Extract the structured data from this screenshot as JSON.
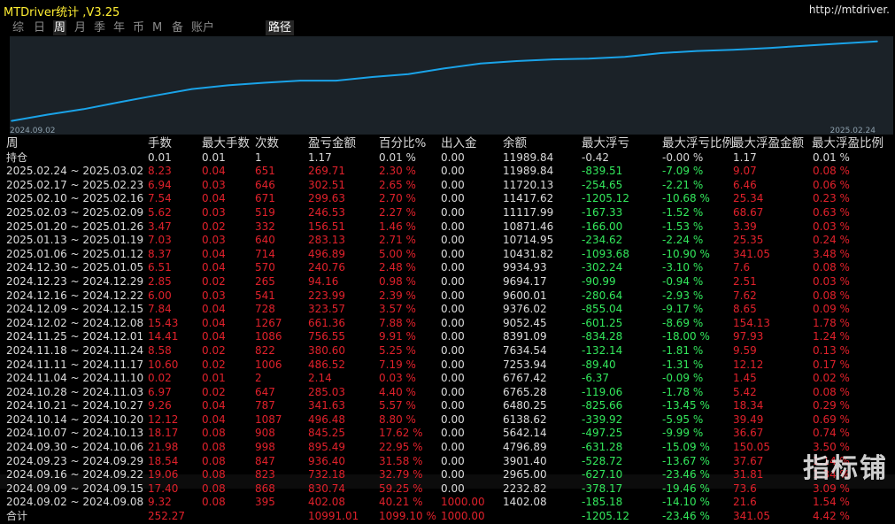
{
  "title": "MTDriver统计 ,V3.25",
  "url": "http://mtdriver.",
  "tabs": [
    {
      "label": "综",
      "active": false
    },
    {
      "label": "日",
      "active": false
    },
    {
      "label": "周",
      "active": true
    },
    {
      "label": "月",
      "active": false
    },
    {
      "label": "季",
      "active": false
    },
    {
      "label": "年",
      "active": false
    },
    {
      "label": "币",
      "active": false
    },
    {
      "label": "M",
      "active": false
    },
    {
      "label": "备",
      "active": false
    },
    {
      "label": "账户",
      "active": false
    }
  ],
  "path_button": "路径",
  "chart_data": {
    "type": "line",
    "x_start_label": "2024.09.02",
    "x_end_label": "2025.02.24",
    "line_color": "#1aa3e8",
    "background": "#1b2228",
    "x": [
      "2024.09.02",
      "2024.09.09",
      "2024.09.16",
      "2024.09.23",
      "2024.09.30",
      "2024.10.07",
      "2024.10.14",
      "2024.10.21",
      "2024.10.28",
      "2024.11.04",
      "2024.11.11",
      "2024.11.18",
      "2024.11.25",
      "2024.12.02",
      "2024.12.09",
      "2024.12.16",
      "2024.12.23",
      "2024.12.30",
      "2025.01.06",
      "2025.01.13",
      "2025.01.20",
      "2025.02.03",
      "2025.02.10",
      "2025.02.17",
      "2025.02.24"
    ],
    "values": [
      1402.08,
      2232.82,
      2965.0,
      3901.4,
      4796.89,
      5642.14,
      6138.62,
      6480.25,
      6765.28,
      6767.42,
      7253.94,
      7634.54,
      8391.09,
      9052.45,
      9376.02,
      9600.01,
      9694.17,
      9934.93,
      10431.82,
      10714.95,
      10871.46,
      11117.99,
      11417.62,
      11720.13,
      11989.84
    ],
    "ylim": [
      1000,
      12200
    ]
  },
  "table": {
    "headers": [
      "周",
      "手数",
      "最大手数",
      "次数",
      "盈亏金额",
      "百分比%",
      "出入金",
      "余额",
      "最大浮亏",
      "最大浮亏比例",
      "最大浮盈金额",
      "最大浮盈比例"
    ],
    "holding": {
      "label": "持仓",
      "lots": "0.01",
      "max_lots": "0.01",
      "count": "1",
      "pnl": "1.17",
      "pct": "0.01 %",
      "cash": "0.00",
      "balance": "11989.84",
      "max_float_loss": "-0.42",
      "max_float_loss_pct": "-0.00 %",
      "max_float_profit": "1.17",
      "max_float_profit_pct": "0.01 %"
    },
    "rows": [
      {
        "week": "2025.02.24 ~ 2025.03.02",
        "lots": "8.23",
        "max_lots": "0.04",
        "count": "651",
        "pnl": "269.71",
        "pct": "2.30 %",
        "cash": "0.00",
        "balance": "11989.84",
        "max_float_loss": "-839.51",
        "max_float_loss_pct": "-7.09 %",
        "max_float_profit": "9.07",
        "max_float_profit_pct": "0.08 %"
      },
      {
        "week": "2025.02.17 ~ 2025.02.23",
        "lots": "6.94",
        "max_lots": "0.03",
        "count": "646",
        "pnl": "302.51",
        "pct": "2.65 %",
        "cash": "0.00",
        "balance": "11720.13",
        "max_float_loss": "-254.65",
        "max_float_loss_pct": "-2.21 %",
        "max_float_profit": "6.46",
        "max_float_profit_pct": "0.06 %"
      },
      {
        "week": "2025.02.10 ~ 2025.02.16",
        "lots": "7.54",
        "max_lots": "0.04",
        "count": "671",
        "pnl": "299.63",
        "pct": "2.70 %",
        "cash": "0.00",
        "balance": "11417.62",
        "max_float_loss": "-1205.12",
        "max_float_loss_pct": "-10.68 %",
        "max_float_profit": "25.34",
        "max_float_profit_pct": "0.23 %"
      },
      {
        "week": "2025.02.03 ~ 2025.02.09",
        "lots": "5.62",
        "max_lots": "0.03",
        "count": "519",
        "pnl": "246.53",
        "pct": "2.27 %",
        "cash": "0.00",
        "balance": "11117.99",
        "max_float_loss": "-167.33",
        "max_float_loss_pct": "-1.52 %",
        "max_float_profit": "68.67",
        "max_float_profit_pct": "0.63 %"
      },
      {
        "week": "2025.01.20 ~ 2025.01.26",
        "lots": "3.47",
        "max_lots": "0.02",
        "count": "332",
        "pnl": "156.51",
        "pct": "1.46 %",
        "cash": "0.00",
        "balance": "10871.46",
        "max_float_loss": "-166.00",
        "max_float_loss_pct": "-1.53 %",
        "max_float_profit": "3.39",
        "max_float_profit_pct": "0.03 %"
      },
      {
        "week": "2025.01.13 ~ 2025.01.19",
        "lots": "7.03",
        "max_lots": "0.03",
        "count": "640",
        "pnl": "283.13",
        "pct": "2.71 %",
        "cash": "0.00",
        "balance": "10714.95",
        "max_float_loss": "-234.62",
        "max_float_loss_pct": "-2.24 %",
        "max_float_profit": "25.35",
        "max_float_profit_pct": "0.24 %"
      },
      {
        "week": "2025.01.06 ~ 2025.01.12",
        "lots": "8.37",
        "max_lots": "0.04",
        "count": "714",
        "pnl": "496.89",
        "pct": "5.00 %",
        "cash": "0.00",
        "balance": "10431.82",
        "max_float_loss": "-1093.68",
        "max_float_loss_pct": "-10.90 %",
        "max_float_profit": "341.05",
        "max_float_profit_pct": "3.48 %"
      },
      {
        "week": "2024.12.30 ~ 2025.01.05",
        "lots": "6.51",
        "max_lots": "0.04",
        "count": "570",
        "pnl": "240.76",
        "pct": "2.48 %",
        "cash": "0.00",
        "balance": "9934.93",
        "max_float_loss": "-302.24",
        "max_float_loss_pct": "-3.10 %",
        "max_float_profit": "7.6",
        "max_float_profit_pct": "0.08 %"
      },
      {
        "week": "2024.12.23 ~ 2024.12.29",
        "lots": "2.85",
        "max_lots": "0.02",
        "count": "265",
        "pnl": "94.16",
        "pct": "0.98 %",
        "cash": "0.00",
        "balance": "9694.17",
        "max_float_loss": "-90.99",
        "max_float_loss_pct": "-0.94 %",
        "max_float_profit": "2.51",
        "max_float_profit_pct": "0.03 %"
      },
      {
        "week": "2024.12.16 ~ 2024.12.22",
        "lots": "6.00",
        "max_lots": "0.03",
        "count": "541",
        "pnl": "223.99",
        "pct": "2.39 %",
        "cash": "0.00",
        "balance": "9600.01",
        "max_float_loss": "-280.64",
        "max_float_loss_pct": "-2.93 %",
        "max_float_profit": "7.62",
        "max_float_profit_pct": "0.08 %"
      },
      {
        "week": "2024.12.09 ~ 2024.12.15",
        "lots": "7.84",
        "max_lots": "0.04",
        "count": "728",
        "pnl": "323.57",
        "pct": "3.57 %",
        "cash": "0.00",
        "balance": "9376.02",
        "max_float_loss": "-855.04",
        "max_float_loss_pct": "-9.17 %",
        "max_float_profit": "8.65",
        "max_float_profit_pct": "0.09 %"
      },
      {
        "week": "2024.12.02 ~ 2024.12.08",
        "lots": "15.43",
        "max_lots": "0.04",
        "count": "1267",
        "pnl": "661.36",
        "pct": "7.88 %",
        "cash": "0.00",
        "balance": "9052.45",
        "max_float_loss": "-601.25",
        "max_float_loss_pct": "-8.69 %",
        "max_float_profit": "154.13",
        "max_float_profit_pct": "1.78 %"
      },
      {
        "week": "2024.11.25 ~ 2024.12.01",
        "lots": "14.41",
        "max_lots": "0.04",
        "count": "1086",
        "pnl": "756.55",
        "pct": "9.91 %",
        "cash": "0.00",
        "balance": "8391.09",
        "max_float_loss": "-834.28",
        "max_float_loss_pct": "-18.00 %",
        "max_float_profit": "97.93",
        "max_float_profit_pct": "1.24 %"
      },
      {
        "week": "2024.11.18 ~ 2024.11.24",
        "lots": "8.58",
        "max_lots": "0.02",
        "count": "822",
        "pnl": "380.60",
        "pct": "5.25 %",
        "cash": "0.00",
        "balance": "7634.54",
        "max_float_loss": "-132.14",
        "max_float_loss_pct": "-1.81 %",
        "max_float_profit": "9.59",
        "max_float_profit_pct": "0.13 %"
      },
      {
        "week": "2024.11.11 ~ 2024.11.17",
        "lots": "10.60",
        "max_lots": "0.02",
        "count": "1006",
        "pnl": "486.52",
        "pct": "7.19 %",
        "cash": "0.00",
        "balance": "7253.94",
        "max_float_loss": "-89.40",
        "max_float_loss_pct": "-1.31 %",
        "max_float_profit": "12.12",
        "max_float_profit_pct": "0.17 %"
      },
      {
        "week": "2024.11.04 ~ 2024.11.10",
        "lots": "0.02",
        "max_lots": "0.01",
        "count": "2",
        "pnl": "2.14",
        "pct": "0.03 %",
        "cash": "0.00",
        "balance": "6767.42",
        "max_float_loss": "-6.37",
        "max_float_loss_pct": "-0.09 %",
        "max_float_profit": "1.45",
        "max_float_profit_pct": "0.02 %"
      },
      {
        "week": "2024.10.28 ~ 2024.11.03",
        "lots": "6.97",
        "max_lots": "0.02",
        "count": "647",
        "pnl": "285.03",
        "pct": "4.40 %",
        "cash": "0.00",
        "balance": "6765.28",
        "max_float_loss": "-119.06",
        "max_float_loss_pct": "-1.78 %",
        "max_float_profit": "5.42",
        "max_float_profit_pct": "0.08 %"
      },
      {
        "week": "2024.10.21 ~ 2024.10.27",
        "lots": "9.26",
        "max_lots": "0.04",
        "count": "787",
        "pnl": "341.63",
        "pct": "5.57 %",
        "cash": "0.00",
        "balance": "6480.25",
        "max_float_loss": "-825.66",
        "max_float_loss_pct": "-13.45 %",
        "max_float_profit": "18.34",
        "max_float_profit_pct": "0.29 %"
      },
      {
        "week": "2024.10.14 ~ 2024.10.20",
        "lots": "12.12",
        "max_lots": "0.04",
        "count": "1087",
        "pnl": "496.48",
        "pct": "8.80 %",
        "cash": "0.00",
        "balance": "6138.62",
        "max_float_loss": "-339.92",
        "max_float_loss_pct": "-5.95 %",
        "max_float_profit": "39.49",
        "max_float_profit_pct": "0.69 %"
      },
      {
        "week": "2024.10.07 ~ 2024.10.13",
        "lots": "18.17",
        "max_lots": "0.08",
        "count": "908",
        "pnl": "845.25",
        "pct": "17.62 %",
        "cash": "0.00",
        "balance": "5642.14",
        "max_float_loss": "-497.25",
        "max_float_loss_pct": "-9.99 %",
        "max_float_profit": "36.67",
        "max_float_profit_pct": "0.74 %"
      },
      {
        "week": "2024.09.30 ~ 2024.10.06",
        "lots": "21.98",
        "max_lots": "0.08",
        "count": "998",
        "pnl": "895.49",
        "pct": "22.95 %",
        "cash": "0.00",
        "balance": "4796.89",
        "max_float_loss": "-631.28",
        "max_float_loss_pct": "-15.09 %",
        "max_float_profit": "150.05",
        "max_float_profit_pct": "3.50 %"
      },
      {
        "week": "2024.09.23 ~ 2024.09.29",
        "lots": "18.54",
        "max_lots": "0.08",
        "count": "847",
        "pnl": "936.40",
        "pct": "31.58 %",
        "cash": "0.00",
        "balance": "3901.40",
        "max_float_loss": "-528.72",
        "max_float_loss_pct": "-13.67 %",
        "max_float_profit": "37.67",
        "max_float_profit_pct": "1.14 %"
      },
      {
        "week": "2024.09.16 ~ 2024.09.22",
        "lots": "19.06",
        "max_lots": "0.08",
        "count": "823",
        "pnl": "732.18",
        "pct": "32.79 %",
        "cash": "0.00",
        "balance": "2965.00",
        "max_float_loss": "-627.10",
        "max_float_loss_pct": "-23.46 %",
        "max_float_profit": "31.81",
        "max_float_profit_pct": "1.34 %"
      },
      {
        "week": "2024.09.09 ~ 2024.09.15",
        "lots": "17.40",
        "max_lots": "0.08",
        "count": "868",
        "pnl": "830.74",
        "pct": "59.25 %",
        "cash": "0.00",
        "balance": "2232.82",
        "max_float_loss": "-378.17",
        "max_float_loss_pct": "-19.46 %",
        "max_float_profit": "73.6",
        "max_float_profit_pct": "3.09 %"
      },
      {
        "week": "2024.09.02 ~ 2024.09.08",
        "lots": "9.32",
        "max_lots": "0.08",
        "count": "395",
        "pnl": "402.08",
        "pct": "40.21 %",
        "cash": "1000.00",
        "balance": "1402.08",
        "max_float_loss": "-185.18",
        "max_float_loss_pct": "-14.10 %",
        "max_float_profit": "21.6",
        "max_float_profit_pct": "1.54 %"
      }
    ],
    "total": {
      "label": "合计",
      "lots": "252.27",
      "pnl": "10991.01",
      "pct": "1099.10 %",
      "cash": "1000.00",
      "max_float_loss": "-1205.12",
      "max_float_loss_pct": "-23.46 %",
      "max_float_profit": "341.05",
      "max_float_profit_pct": "4.42 %"
    }
  },
  "watermark": "指标铺",
  "colors": {
    "title": "#ffee33",
    "red": "#e0212b",
    "green": "#33e85c",
    "line": "#1aa3e8"
  }
}
